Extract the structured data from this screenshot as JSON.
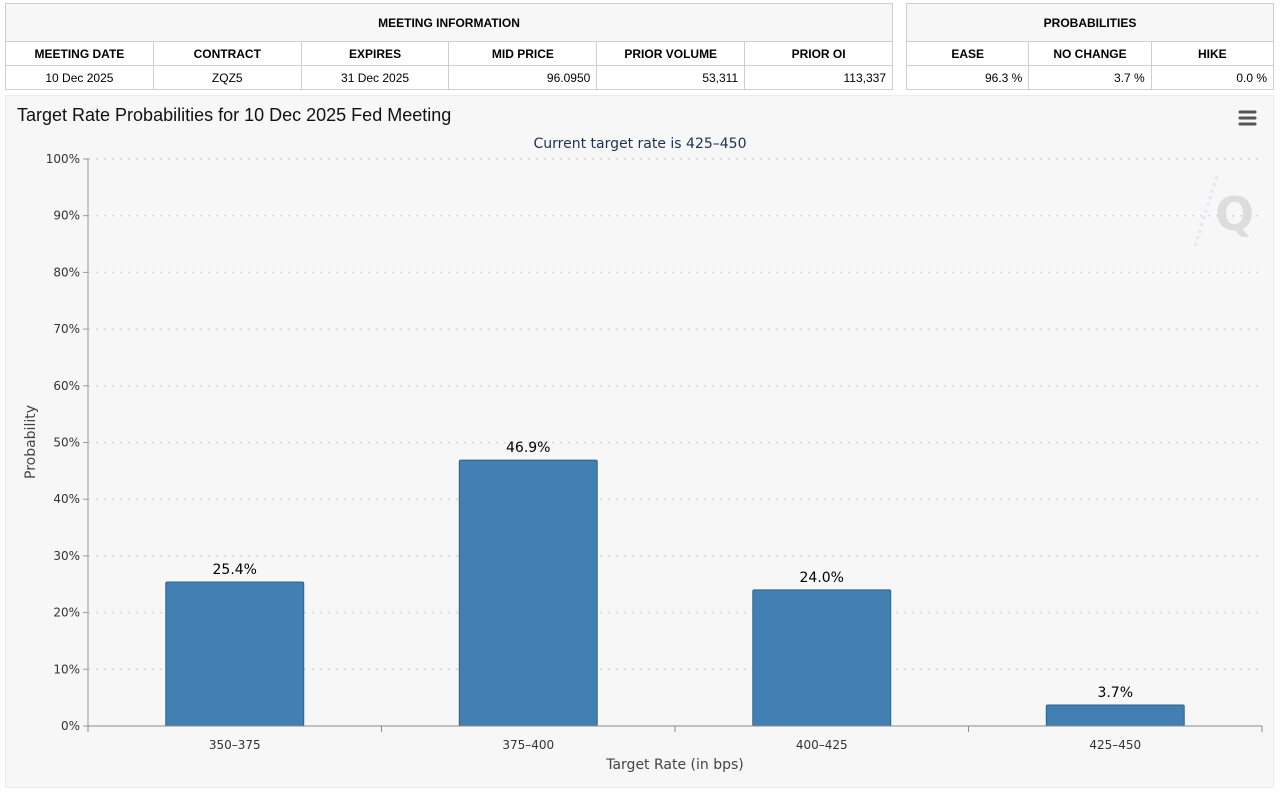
{
  "meeting_info": {
    "caption": "MEETING INFORMATION",
    "headers": [
      "MEETING DATE",
      "CONTRACT",
      "EXPIRES",
      "MID PRICE",
      "PRIOR VOLUME",
      "PRIOR OI"
    ],
    "values": [
      "10 Dec 2025",
      "ZQZ5",
      "31 Dec 2025",
      "96.0950",
      "53,311",
      "113,337"
    ]
  },
  "probabilities": {
    "caption": "PROBABILITIES",
    "headers": [
      "EASE",
      "NO CHANGE",
      "HIKE"
    ],
    "values": [
      "96.3 %",
      "3.7 %",
      "0.0 %"
    ]
  },
  "colors": {
    "bar": "#4280b4",
    "panel": "#f7f7f7"
  },
  "chart_data": {
    "type": "bar",
    "title": "Target Rate Probabilities for 10 Dec 2025 Fed Meeting",
    "subtitle": "Current target rate is 425–450",
    "categories": [
      "350–375",
      "375–400",
      "400–425",
      "425–450"
    ],
    "values": [
      25.4,
      46.9,
      24.0,
      3.7
    ],
    "data_labels": [
      "25.4%",
      "46.9%",
      "24.0%",
      "3.7%"
    ],
    "xlabel": "Target Rate (in bps)",
    "ylabel": "Probability",
    "ylim": [
      0,
      100
    ],
    "yticks": [
      0,
      10,
      20,
      30,
      40,
      50,
      60,
      70,
      80,
      90,
      100
    ],
    "ytick_labels": [
      "0%",
      "10%",
      "20%",
      "30%",
      "40%",
      "50%",
      "60%",
      "70%",
      "80%",
      "90%",
      "100%"
    ],
    "grid": true,
    "watermark": "Q",
    "menu_icon": "hamburger-menu-icon"
  }
}
